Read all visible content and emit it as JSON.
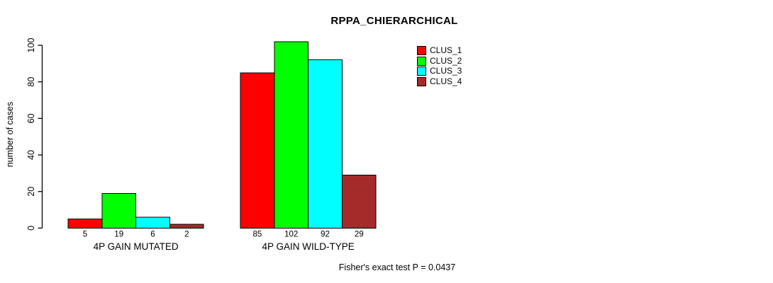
{
  "title": "RPPA_CHIERARCHICAL",
  "ylabel": "number of cases",
  "footer": "Fisher's exact test P = 0.0437",
  "legend": {
    "items": [
      {
        "label": "CLUS_1",
        "color": "#FF0000"
      },
      {
        "label": "CLUS_2",
        "color": "#00FF00"
      },
      {
        "label": "CLUS_3",
        "color": "#00FFFF"
      },
      {
        "label": "CLUS_4",
        "color": "#A52A2A"
      }
    ]
  },
  "chart_data": {
    "type": "bar",
    "title": "RPPA_CHIERARCHICAL",
    "xlabel": "",
    "ylabel": "number of cases",
    "ylim": [
      0,
      100
    ],
    "yticks": [
      0,
      20,
      40,
      60,
      80,
      100
    ],
    "categories": [
      "4P GAIN MUTATED",
      "4P GAIN WILD-TYPE"
    ],
    "series": [
      {
        "name": "CLUS_1",
        "color": "#FF0000",
        "values": [
          5,
          85
        ]
      },
      {
        "name": "CLUS_2",
        "color": "#00FF00",
        "values": [
          19,
          102
        ]
      },
      {
        "name": "CLUS_3",
        "color": "#00FFFF",
        "values": [
          6,
          92
        ]
      },
      {
        "name": "CLUS_4",
        "color": "#A52A2A",
        "values": [
          2,
          29
        ]
      }
    ],
    "bar_value_labels": [
      [
        "5",
        "19",
        "6",
        "2"
      ],
      [
        "85",
        "102",
        "92",
        "29"
      ]
    ],
    "legend_position": "top-right",
    "grid": false,
    "bar_border_color": "#000000",
    "annotation": "Fisher's exact test P = 0.0437"
  }
}
